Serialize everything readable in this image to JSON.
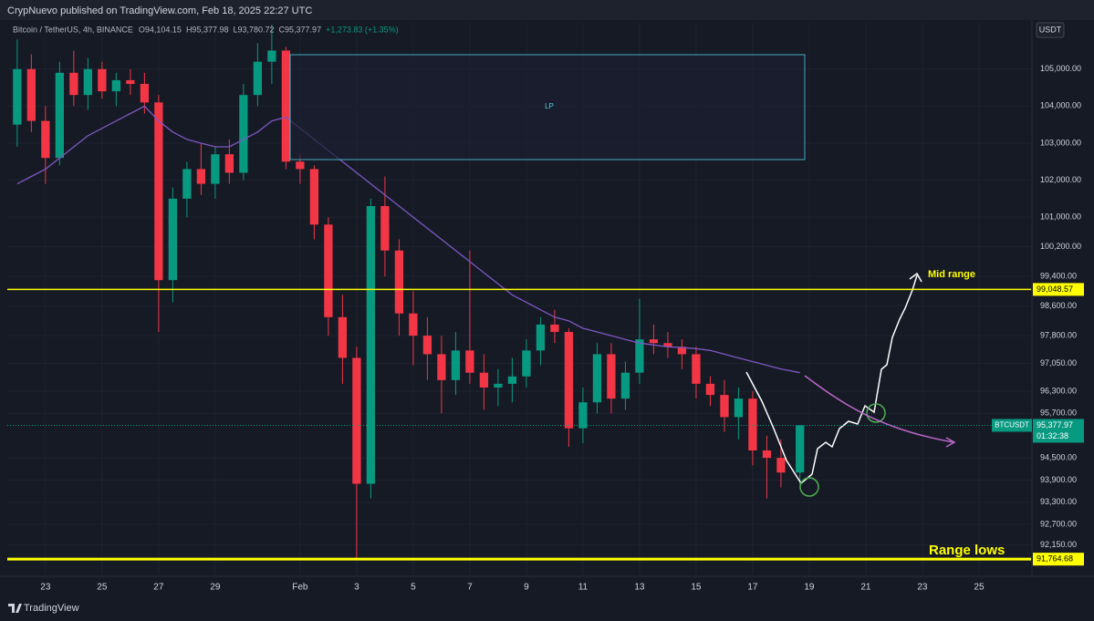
{
  "header": {
    "publisher": "CrypNuevo published on TradingView.com, Feb 18, 2025 22:27 UTC",
    "symbol": "Bitcoin / TetherUS, 4h, BINANCE",
    "ohlc": [
      "O94,104.15",
      "H95,377.98",
      "L93,780.72",
      "C95,377.97",
      "+1,273.83 (+1.35%)"
    ]
  },
  "currency": "USDT",
  "brand": "TradingView",
  "chart_data": {
    "type": "candlestick",
    "up_color": "#089981",
    "down_color": "#f23645",
    "ma_color": "#7e57c2",
    "x": [
      22.0,
      22.5,
      23.0,
      23.5,
      24.0,
      24.5,
      25.0,
      25.5,
      26.0,
      26.5,
      27.0,
      27.5,
      28.0,
      28.5,
      29.0,
      29.5,
      30.0,
      30.5,
      31.0,
      31.5,
      32.0,
      32.5,
      33.0,
      33.5,
      34.0,
      34.5,
      35.0,
      35.5,
      36.0,
      36.5,
      37.0,
      37.5,
      38.0,
      38.5,
      39.0,
      39.5,
      40.0,
      40.5,
      41.0,
      41.5,
      42.0,
      42.5,
      43.0,
      43.5,
      44.0,
      44.5,
      45.0,
      45.5,
      46.0,
      46.5,
      47.0,
      47.5,
      48.0,
      48.5,
      49.0,
      49.67
    ],
    "open": [
      103500,
      105000,
      103600,
      102600,
      104900,
      104300,
      105000,
      104400,
      104700,
      104600,
      104100,
      99300,
      101500,
      102300,
      101900,
      102700,
      102200,
      104300,
      105200,
      105500,
      102500,
      102300,
      100800,
      98300,
      97200,
      93800,
      101300,
      100100,
      98400,
      97800,
      97300,
      96600,
      97400,
      96800,
      96400,
      96500,
      96700,
      97400,
      98100,
      97900,
      95300,
      96000,
      97300,
      96100,
      96800,
      97700,
      97600,
      97500,
      97300,
      96500,
      96200,
      95600,
      96100,
      94700,
      94500,
      94104.15
    ],
    "high": [
      105800,
      105400,
      104000,
      105200,
      105500,
      105300,
      105200,
      104900,
      105000,
      104900,
      104300,
      101800,
      102500,
      103000,
      102900,
      103100,
      104600,
      105700,
      106200,
      105600,
      102700,
      102400,
      101000,
      98900,
      97500,
      101500,
      102100,
      100400,
      99000,
      98300,
      97800,
      97900,
      100100,
      97300,
      96900,
      97200,
      97700,
      98300,
      98500,
      98000,
      96400,
      97600,
      97600,
      97100,
      98800,
      98100,
      97900,
      97700,
      97500,
      96700,
      96600,
      96400,
      96300,
      95100,
      95000,
      95377.98
    ],
    "low": [
      102900,
      103300,
      101900,
      102400,
      104000,
      103900,
      104200,
      104000,
      104300,
      103800,
      97900,
      98700,
      101000,
      101600,
      101500,
      101900,
      102000,
      104000,
      104600,
      102300,
      101900,
      100400,
      97800,
      96500,
      91800,
      93400,
      99400,
      97800,
      97000,
      96600,
      95700,
      96200,
      96500,
      95800,
      95900,
      96000,
      96400,
      97000,
      97600,
      94800,
      94900,
      95700,
      95700,
      95800,
      96500,
      97300,
      97200,
      96900,
      96100,
      95900,
      95200,
      95000,
      94300,
      93400,
      93700,
      93780.72
    ],
    "close": [
      105000,
      103600,
      102600,
      104900,
      104300,
      105000,
      104400,
      104700,
      104600,
      104100,
      99300,
      101500,
      102300,
      101900,
      102700,
      102200,
      104300,
      105200,
      105500,
      102500,
      102300,
      100800,
      98300,
      97200,
      93800,
      101300,
      100100,
      98400,
      97800,
      97300,
      96600,
      97400,
      96800,
      96400,
      96500,
      96700,
      97400,
      98100,
      97900,
      95300,
      96000,
      97300,
      96100,
      96800,
      97700,
      97600,
      97500,
      97300,
      96500,
      96200,
      95600,
      96100,
      94700,
      94500,
      94104.15,
      95377.97
    ],
    "ma": [
      101900,
      102100,
      102300,
      102600,
      102900,
      103200,
      103400,
      103600,
      103800,
      104000,
      103600,
      103300,
      103100,
      103000,
      102900,
      102900,
      103100,
      103300,
      103600,
      103700,
      103400,
      103100,
      102800,
      102500,
      102200,
      101900,
      101600,
      101300,
      101000,
      100700,
      100400,
      100100,
      99800,
      99500,
      99200,
      98900,
      98700,
      98500,
      98300,
      98200,
      98000,
      97900,
      97800,
      97700,
      97600,
      97550,
      97500,
      97480,
      97450,
      97400,
      97300,
      97200,
      97100,
      97000,
      96900,
      96800
    ],
    "xlim": [
      21.65,
      57.84
    ],
    "xticks": [
      {
        "value": 23,
        "label": "23"
      },
      {
        "value": 25,
        "label": "25"
      },
      {
        "value": 27,
        "label": "27"
      },
      {
        "value": 29,
        "label": "29"
      },
      {
        "value": 32,
        "label": "Feb"
      },
      {
        "value": 34,
        "label": "3"
      },
      {
        "value": 36,
        "label": "5"
      },
      {
        "value": 38,
        "label": "7"
      },
      {
        "value": 40,
        "label": "9"
      },
      {
        "value": 42,
        "label": "11"
      },
      {
        "value": 44,
        "label": "13"
      },
      {
        "value": 46,
        "label": "15"
      },
      {
        "value": 48,
        "label": "17"
      },
      {
        "value": 50,
        "label": "19"
      },
      {
        "value": 52,
        "label": "21"
      },
      {
        "value": 54,
        "label": "23"
      },
      {
        "value": 56,
        "label": "25"
      }
    ],
    "ylim": [
      91350,
      106250
    ],
    "yticks": [
      {
        "value": 105000,
        "label": "105,000.00"
      },
      {
        "value": 104000,
        "label": "104,000.00"
      },
      {
        "value": 103000,
        "label": "103,000.00"
      },
      {
        "value": 102000,
        "label": "102,000.00"
      },
      {
        "value": 101000,
        "label": "101,000.00"
      },
      {
        "value": 100200,
        "label": "100,200.00"
      },
      {
        "value": 99400,
        "label": "99,400.00"
      },
      {
        "value": 98600,
        "label": "98,600.00"
      },
      {
        "value": 97800,
        "label": "97,800.00"
      },
      {
        "value": 97050,
        "label": "97,050.00"
      },
      {
        "value": 96300,
        "label": "96,300.00"
      },
      {
        "value": 95700,
        "label": "95,700.00"
      },
      {
        "value": 94500,
        "label": "94,500.00"
      },
      {
        "value": 93900,
        "label": "93,900.00"
      },
      {
        "value": 93300,
        "label": "93,300.00"
      },
      {
        "value": 92700,
        "label": "92,700.00"
      },
      {
        "value": 92150,
        "label": "92,150.00"
      }
    ],
    "grid": true,
    "levels": [
      {
        "value": 99048.57,
        "label": "99,048.57",
        "color": "#ffff00",
        "width": 1.5
      },
      {
        "value": 91764.68,
        "label": "91,764.68",
        "color": "#ffff00",
        "width": 3
      }
    ],
    "last_price": {
      "value": 95377.97,
      "label": "95,377.97",
      "symbol": "BTCUSDT",
      "countdown": "01:32:38",
      "color": "#089981"
    },
    "annotations": {
      "box": "LP",
      "mid": "Mid range",
      "lows": "Range lows"
    }
  }
}
